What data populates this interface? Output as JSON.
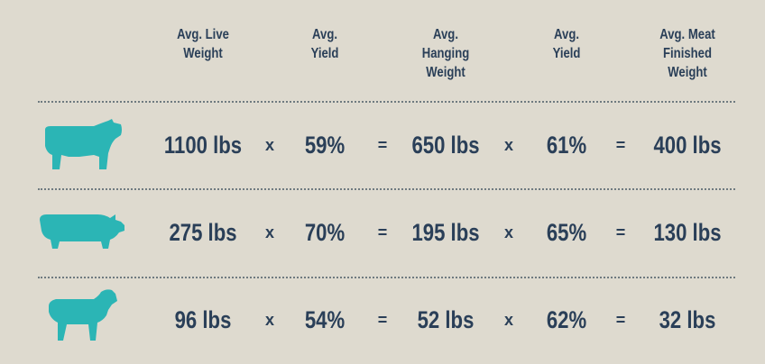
{
  "colors": {
    "background": "#dedacf",
    "text": "#2a3f58",
    "animal_icon": "#2bb5b5",
    "divider": "#6f7a80"
  },
  "headers": [
    {
      "lines": [
        "Avg. Live",
        "Weight"
      ]
    },
    {
      "lines": [
        "Avg.",
        "Yield"
      ]
    },
    {
      "lines": [
        "Avg.",
        "Hanging",
        "Weight"
      ]
    },
    {
      "lines": [
        "Avg.",
        "Yield"
      ]
    },
    {
      "lines": [
        "Avg. Meat",
        "Finished",
        "Weight"
      ]
    }
  ],
  "operators": {
    "multiply": "x",
    "equals": "="
  },
  "rows": [
    {
      "animal_icon": "cow-icon",
      "live_weight": "1100 lbs",
      "yield1": "59%",
      "hanging_weight": "650 lbs",
      "yield2": "61%",
      "finished_weight": "400 lbs"
    },
    {
      "animal_icon": "pig-icon",
      "live_weight": "275 lbs",
      "yield1": "70%",
      "hanging_weight": "195 lbs",
      "yield2": "65%",
      "finished_weight": "130 lbs"
    },
    {
      "animal_icon": "lamb-icon",
      "live_weight": "96 lbs",
      "yield1": "54%",
      "hanging_weight": "52 lbs",
      "yield2": "62%",
      "finished_weight": "32 lbs"
    }
  ]
}
